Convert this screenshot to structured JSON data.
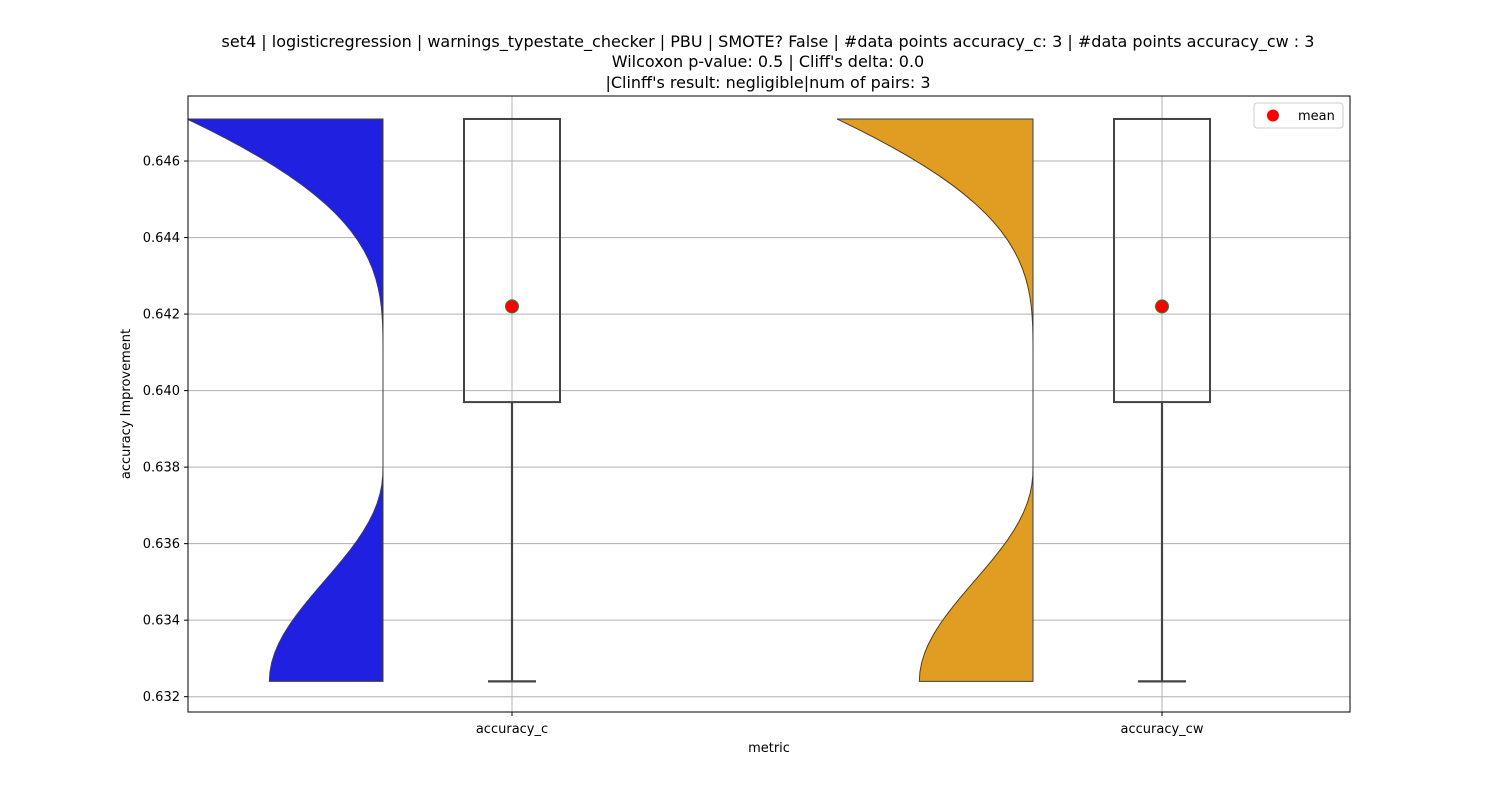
{
  "chart_data": {
    "type": "violin+box",
    "title_lines": [
      "set4 | logisticregression | warnings_typestate_checker | PBU | SMOTE? False | #data points accuracy_c: 3 | #data points accuracy_cw : 3",
      "Wilcoxon p-value: 0.5 | Cliff's delta: 0.0",
      "|Clinff's result: negligible|num of pairs: 3"
    ],
    "xlabel": "metric",
    "ylabel": "accuracy Improvement",
    "categories": [
      "accuracy_c",
      "accuracy_cw"
    ],
    "ylim": [
      0.6316,
      0.6477
    ],
    "yticks": [
      0.632,
      0.634,
      0.636,
      0.638,
      0.64,
      0.642,
      0.644,
      0.646
    ],
    "ytick_labels": [
      "0.632",
      "0.634",
      "0.636",
      "0.638",
      "0.640",
      "0.642",
      "0.644",
      "0.646"
    ],
    "grid": true,
    "legend": {
      "position": "top-right",
      "entries": [
        {
          "label": "mean",
          "color": "#ff0000"
        }
      ]
    },
    "series": [
      {
        "category": "accuracy_c",
        "violin_color": "#2020e0",
        "box": {
          "min": 0.6324,
          "q1": 0.6397,
          "median": 0.6471,
          "q3": 0.6471,
          "max": 0.6471
        },
        "mean": 0.6422
      },
      {
        "category": "accuracy_cw",
        "violin_color": "#e09d22",
        "box": {
          "min": 0.6324,
          "q1": 0.6397,
          "median": 0.6471,
          "q3": 0.6471,
          "max": 0.6471
        },
        "mean": 0.6422
      }
    ]
  }
}
